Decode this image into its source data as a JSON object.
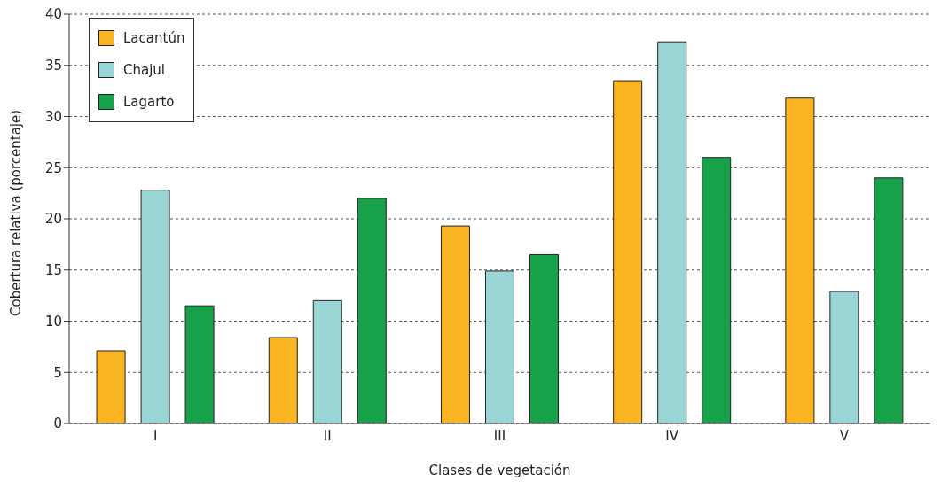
{
  "chart_data": {
    "type": "bar",
    "xlabel": "Clases de vegetación",
    "ylabel": "Cobertura relativa (porcentaje)",
    "categories": [
      "I",
      "II",
      "III",
      "IV",
      "V"
    ],
    "series": [
      {
        "name": "Lacantún",
        "color": "#fbb523",
        "values": [
          7.1,
          8.4,
          19.3,
          33.5,
          31.8
        ]
      },
      {
        "name": "Chajul",
        "color": "#9ad5d5",
        "values": [
          22.8,
          12.0,
          14.9,
          37.3,
          12.9
        ]
      },
      {
        "name": "Lagarto",
        "color": "#17a24a",
        "values": [
          11.5,
          22.0,
          16.5,
          26.0,
          24.0
        ]
      }
    ],
    "ylim": [
      0,
      40
    ],
    "yticks": [
      0,
      5,
      10,
      15,
      20,
      25,
      30,
      35,
      40
    ],
    "grid": "y",
    "legend": "top left"
  }
}
